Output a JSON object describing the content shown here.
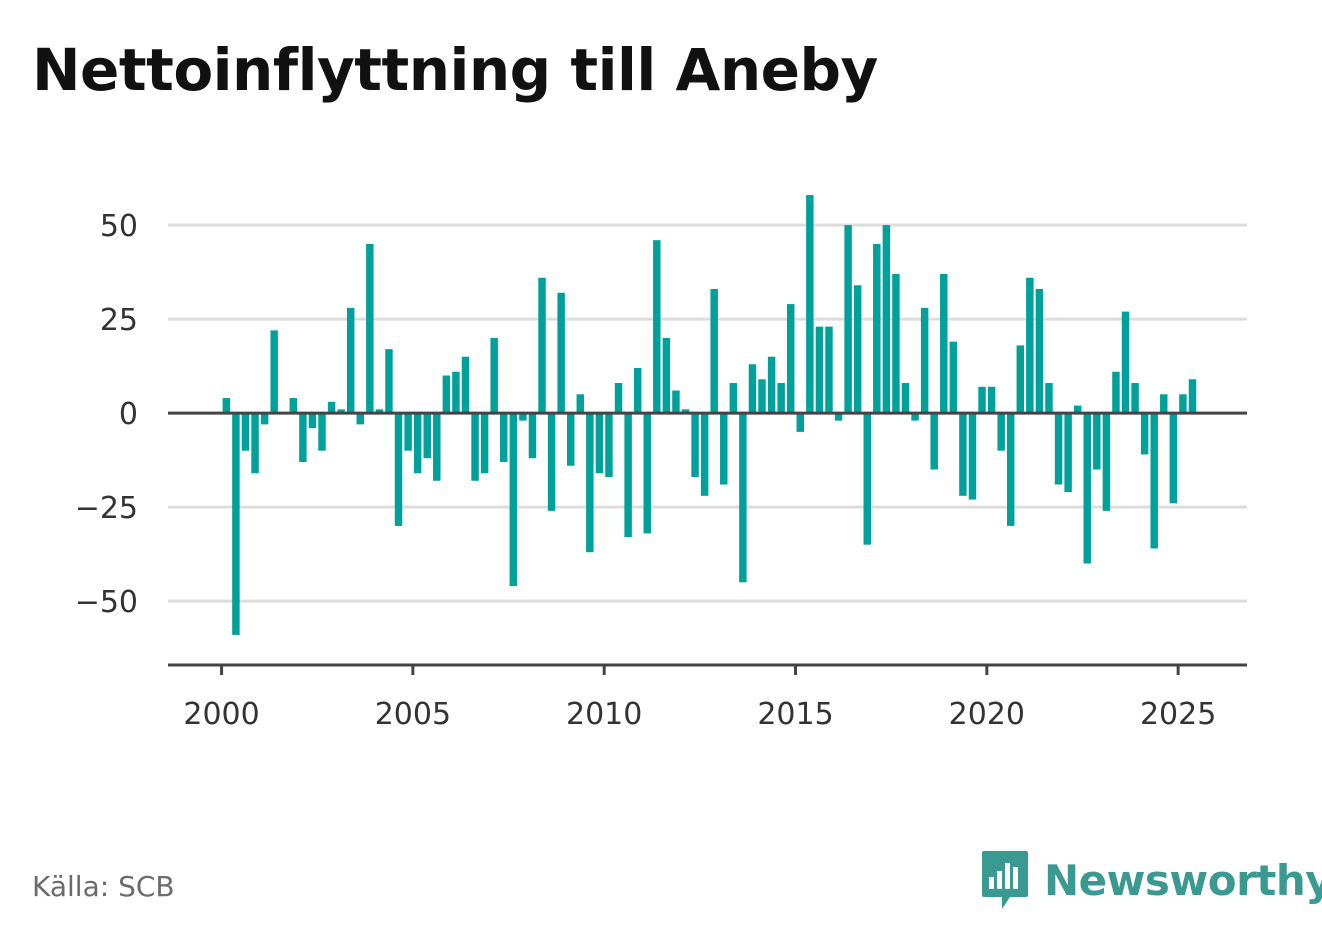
{
  "title": "Nettoinflyttning till Aneby",
  "source": "Källa: SCB",
  "brand": {
    "name": "Newsworthy",
    "icon": "newsworthy-logo-icon",
    "color": "#3a9990"
  },
  "chart_data": {
    "type": "bar",
    "title": "Nettoinflyttning till Aneby",
    "xlabel": "",
    "ylabel": "",
    "x_ticks": [
      "2000",
      "2005",
      "2010",
      "2015",
      "2020",
      "2025"
    ],
    "y_ticks": [
      "50",
      "25",
      "0",
      "−25",
      "−50"
    ],
    "ylim": [
      -67,
      62
    ],
    "xlim": [
      1998.6,
      2026.8
    ],
    "grid": true,
    "bar_color": "#00a19a",
    "start_year": 2000,
    "values": [
      4,
      -59,
      -10,
      -16,
      -3,
      22,
      0,
      4,
      -13,
      -4,
      -10,
      3,
      1,
      28,
      -3,
      45,
      1,
      17,
      -30,
      -10,
      -16,
      -12,
      -18,
      10,
      11,
      15,
      -18,
      -16,
      20,
      -13,
      -46,
      -2,
      -12,
      36,
      -26,
      32,
      -14,
      5,
      -37,
      -16,
      -17,
      8,
      -33,
      12,
      -32,
      46,
      20,
      6,
      1,
      -17,
      -22,
      33,
      -19,
      8,
      -45,
      13,
      9,
      15,
      8,
      29,
      -5,
      58,
      23,
      23,
      -2,
      50,
      34,
      -35,
      45,
      50,
      37,
      8,
      -2,
      28,
      -15,
      37,
      19,
      -22,
      -23,
      7,
      7,
      -10,
      -30,
      18,
      36,
      33,
      8,
      -19,
      -21,
      2,
      -40,
      -15,
      -26,
      11,
      27,
      8,
      -11,
      -36,
      5,
      -24,
      5,
      9
    ]
  }
}
